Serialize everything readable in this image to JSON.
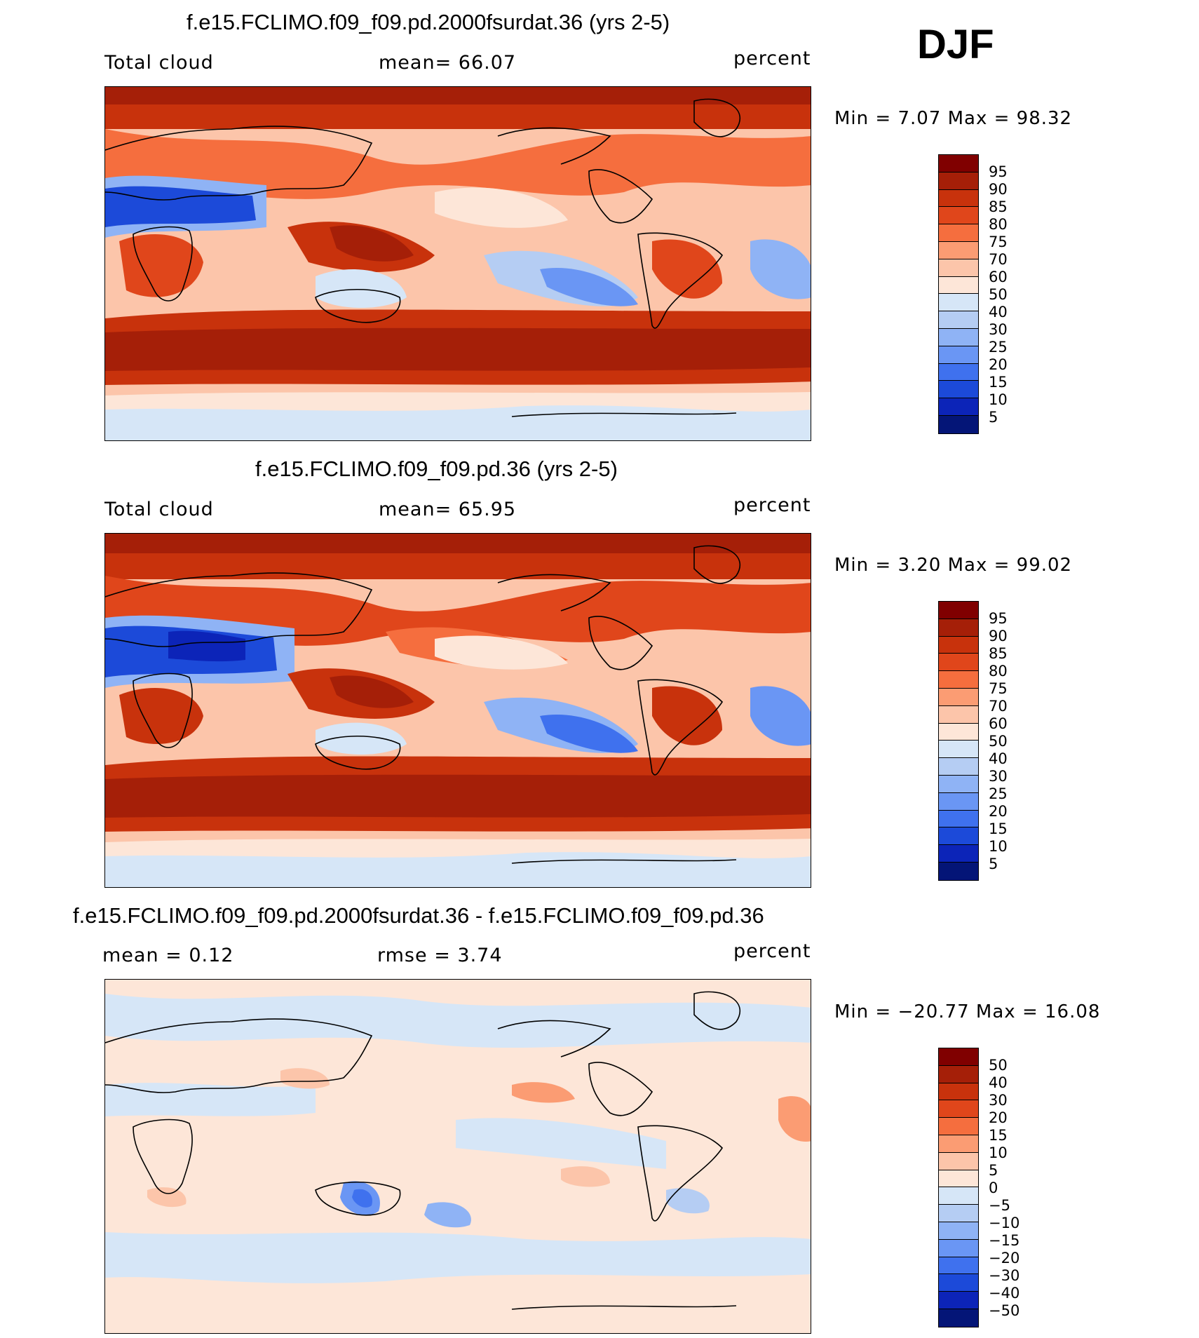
{
  "season": "DJF",
  "panels": [
    {
      "title": "f.e15.FCLIMO.f09_f09.pd.2000fsurdat.36 (yrs 2-5)",
      "left_label": "Total cloud",
      "center_label": "mean=   66.07",
      "units": "percent",
      "minmax": "Min =     7.07 Max =    98.32",
      "colorbar_labels": [
        "95",
        "90",
        "85",
        "80",
        "75",
        "70",
        "60",
        "50",
        "40",
        "30",
        "25",
        "20",
        "15",
        "10",
        "5"
      ]
    },
    {
      "title": "f.e15.FCLIMO.f09_f09.pd.36 (yrs 2-5)",
      "left_label": "Total cloud",
      "center_label": "mean=   65.95",
      "units": "percent",
      "minmax": "Min =     3.20 Max =    99.02",
      "colorbar_labels": [
        "95",
        "90",
        "85",
        "80",
        "75",
        "70",
        "60",
        "50",
        "40",
        "30",
        "25",
        "20",
        "15",
        "10",
        "5"
      ]
    },
    {
      "title": "f.e15.FCLIMO.f09_f09.pd.2000fsurdat.36 - f.e15.FCLIMO.f09_f09.pd.36",
      "left_label": "mean =     0.12",
      "center_label": "rmse =     3.74",
      "units": "percent",
      "minmax": "Min = −20.77 Max =    16.08",
      "colorbar_labels": [
        "50",
        "40",
        "30",
        "20",
        "15",
        "10",
        "5",
        "0",
        "−5",
        "−10",
        "−15",
        "−20",
        "−30",
        "−40",
        "−50"
      ]
    }
  ],
  "colors": {
    "scale": [
      "#800000",
      "#a51f08",
      "#c8320c",
      "#e0461b",
      "#f56e3e",
      "#fb9c73",
      "#fcc5aa",
      "#fde6d8",
      "#d6e6f7",
      "#b5cdf3",
      "#8fb3f5",
      "#6a96f4",
      "#3f71ee",
      "#1c4ad9",
      "#0c24b8",
      "#041577"
    ],
    "land_outline": "#000000"
  }
}
